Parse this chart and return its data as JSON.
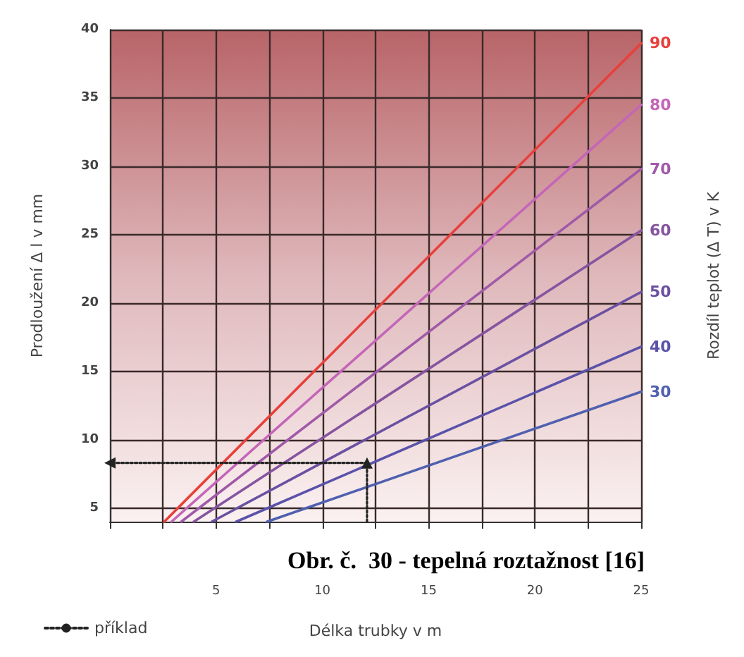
{
  "chart_data": {
    "type": "line",
    "ylabel": "Prodloužení Δ l v mm",
    "y2label": "Rozdíl teplot (Δ T) v K",
    "xlabel": "Délka trubky v m",
    "annotations": [
      "Obr. č.  30 - tepelná roztažnost [16]"
    ],
    "xlim": [
      0,
      25
    ],
    "xticks": [
      {
        "value": 0,
        "label": null
      },
      {
        "value": 2.5,
        "label": null
      },
      5,
      {
        "value": 7.5,
        "label": null
      },
      10,
      {
        "value": 12.5,
        "label": null
      },
      15,
      {
        "value": 17.5,
        "label": null
      },
      20,
      {
        "value": 22.5,
        "label": null
      },
      25
    ],
    "ylim": [
      4,
      40
    ],
    "yticks": [
      5,
      10,
      15,
      20,
      25,
      30,
      35,
      40
    ],
    "grid": true,
    "legend": "bottom left",
    "marker": "none",
    "line_style": "solid",
    "series": [
      {
        "name": "90",
        "color": "#e8403c",
        "x": [
          2.56,
          25
        ],
        "values": [
          4,
          39
        ]
      },
      {
        "name": "80",
        "color": "#c466b8",
        "x": [
          2.9,
          25
        ],
        "values": [
          4,
          34.5
        ]
      },
      {
        "name": "70",
        "color": "#a05aa8",
        "x": [
          3.36,
          25
        ],
        "values": [
          4,
          29.8
        ]
      },
      {
        "name": "60",
        "color": "#8654a0",
        "x": [
          3.95,
          25
        ],
        "values": [
          4,
          25.3
        ]
      },
      {
        "name": "50",
        "color": "#6a50a2",
        "x": [
          4.8,
          25
        ],
        "values": [
          4,
          20.8
        ]
      },
      {
        "name": "40",
        "color": "#5a52aa",
        "x": [
          5.95,
          25
        ],
        "values": [
          4,
          16.8
        ]
      },
      {
        "name": "30",
        "color": "#5060b0",
        "x": [
          7.4,
          25
        ],
        "values": [
          4,
          13.5
        ]
      },
      {
        "name": "příklad",
        "color": "#222222",
        "line_style": "dotted",
        "marker": "triangle",
        "x": [
          12.1,
          12.1,
          0
        ],
        "values": [
          4,
          8.3,
          8.3
        ]
      }
    ]
  }
}
